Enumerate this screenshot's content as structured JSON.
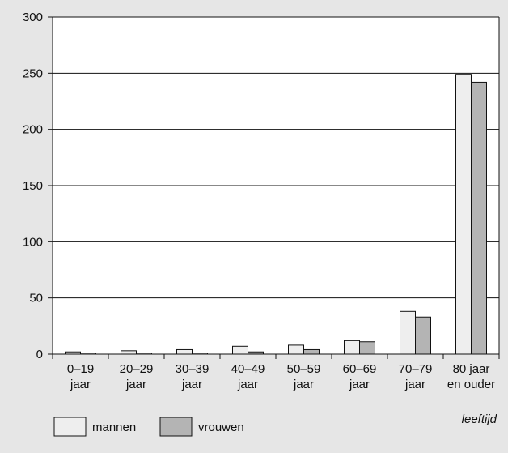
{
  "chart_data": {
    "type": "bar",
    "title": "",
    "xlabel": "leeftijd",
    "ylabel": "",
    "ylim": [
      0,
      300
    ],
    "yticks": [
      0,
      50,
      100,
      150,
      200,
      250,
      300
    ],
    "grid": "horizontal",
    "categories": [
      [
        "0–19",
        "jaar"
      ],
      [
        "20–29",
        "jaar"
      ],
      [
        "30–39",
        "jaar"
      ],
      [
        "40–49",
        "jaar"
      ],
      [
        "50–59",
        "jaar"
      ],
      [
        "60–69",
        "jaar"
      ],
      [
        "70–79",
        "jaar"
      ],
      [
        "80 jaar",
        "en ouder"
      ]
    ],
    "series": [
      {
        "name": "mannen",
        "color": "#eeeeee",
        "values": [
          2,
          3,
          4,
          7,
          8,
          12,
          38,
          249
        ]
      },
      {
        "name": "vrouwen",
        "color": "#b4b4b4",
        "values": [
          1,
          1,
          1,
          2,
          4,
          11,
          33,
          242
        ]
      }
    ],
    "legend_position": "bottom-left"
  }
}
